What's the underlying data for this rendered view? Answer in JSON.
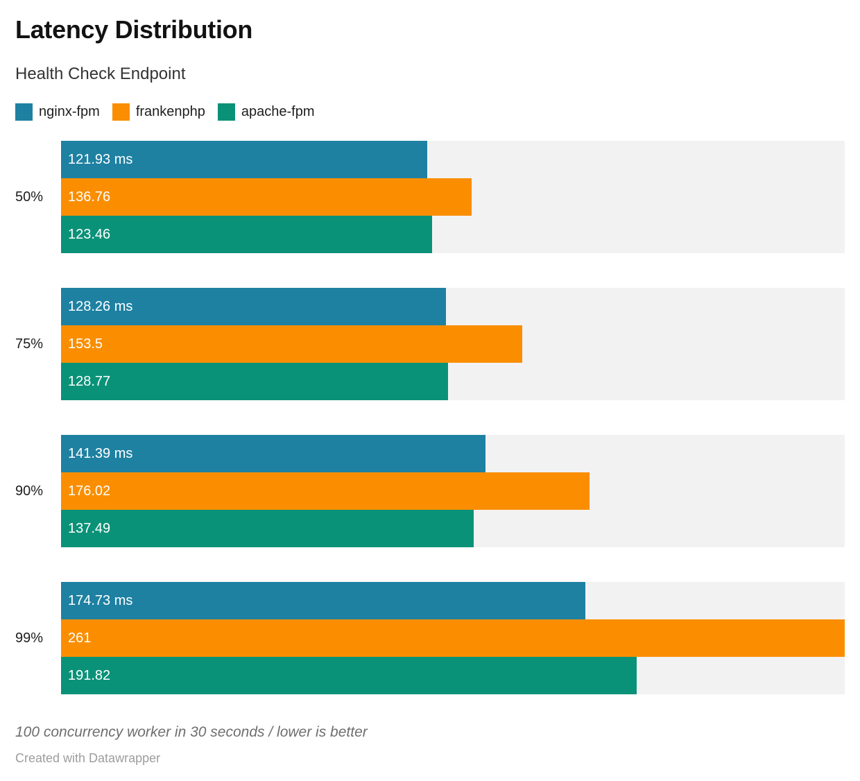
{
  "header": {
    "title": "Latency Distribution",
    "subtitle": "Health Check Endpoint"
  },
  "legend": [
    {
      "label": "nginx-fpm",
      "color": "#1e81a2"
    },
    {
      "label": "frankenphp",
      "color": "#fa8e00"
    },
    {
      "label": "apache-fpm",
      "color": "#0a9278"
    }
  ],
  "chart_data": {
    "type": "bar",
    "orientation": "horizontal",
    "title": "Latency Distribution",
    "subtitle": "Health Check Endpoint",
    "unit": "ms",
    "xmax": 261,
    "track_color": "#f2f2f2",
    "legend_position": "top",
    "grid": false,
    "categories": [
      "50%",
      "75%",
      "90%",
      "99%"
    ],
    "series": [
      {
        "name": "nginx-fpm",
        "color": "#1e81a2",
        "values": [
          121.93,
          128.26,
          141.39,
          174.73
        ],
        "labels": [
          "121.93 ms",
          "128.26 ms",
          "141.39 ms",
          "174.73 ms"
        ]
      },
      {
        "name": "frankenphp",
        "color": "#fa8e00",
        "values": [
          136.76,
          153.5,
          176.02,
          261
        ],
        "labels": [
          "136.76",
          "153.5",
          "176.02",
          "261"
        ]
      },
      {
        "name": "apache-fpm",
        "color": "#0a9278",
        "values": [
          123.46,
          128.77,
          137.49,
          191.82
        ],
        "labels": [
          "123.46",
          "128.77",
          "137.49",
          "191.82"
        ]
      }
    ]
  },
  "footer": {
    "note": "100 concurrency worker in 30 seconds / lower is better",
    "credit": "Created with Datawrapper"
  }
}
